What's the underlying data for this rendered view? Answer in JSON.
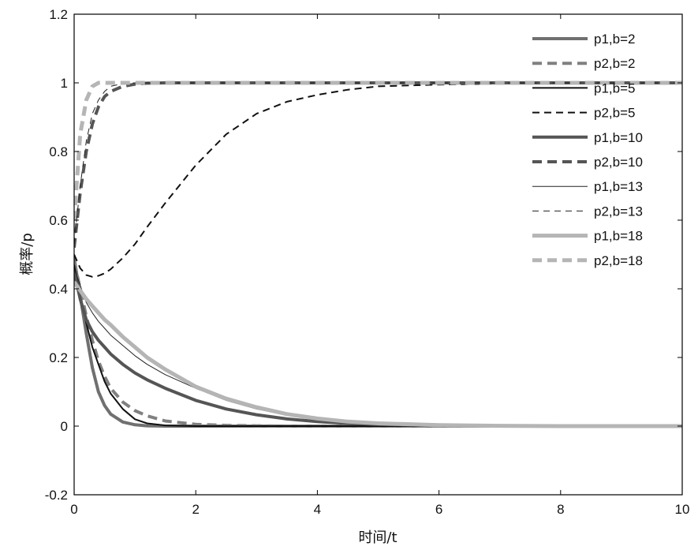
{
  "chart_data": {
    "type": "line",
    "title": "",
    "xlabel": "时间/t",
    "ylabel": "概率/p",
    "xlim": [
      0,
      10
    ],
    "ylim": [
      -0.2,
      1.2
    ],
    "xticks": [
      "0",
      "2",
      "4",
      "6",
      "8",
      "10"
    ],
    "yticks": [
      "-0.2",
      "0",
      "0.2",
      "0.4",
      "0.6",
      "0.8",
      "1",
      "1.2"
    ],
    "grid": false,
    "legend_position": "top-right",
    "x": [
      0,
      0.1,
      0.2,
      0.3,
      0.4,
      0.5,
      0.6,
      0.8,
      1.0,
      1.2,
      1.5,
      2.0,
      2.5,
      3.0,
      3.5,
      4.0,
      4.5,
      5.0,
      6.0,
      7.0,
      8.0,
      10.0
    ],
    "series": [
      {
        "name": "p1,b=2",
        "color": "#707070",
        "style": "solid",
        "width": 4,
        "values": [
          0.49,
          0.38,
          0.27,
          0.17,
          0.1,
          0.06,
          0.035,
          0.012,
          0.004,
          0.001,
          0,
          0,
          0,
          0,
          0,
          0,
          0,
          0,
          0,
          0,
          0,
          0
        ]
      },
      {
        "name": "p2,b=2",
        "color": "#808080",
        "style": "dashed",
        "width": 4,
        "values": [
          0.48,
          0.4,
          0.32,
          0.25,
          0.19,
          0.145,
          0.11,
          0.07,
          0.045,
          0.03,
          0.015,
          0.005,
          0.002,
          0.001,
          0,
          0,
          0,
          0,
          0,
          0,
          0,
          0
        ]
      },
      {
        "name": "p1,b=5",
        "color": "#111111",
        "style": "solid",
        "width": 2,
        "values": [
          0.47,
          0.38,
          0.3,
          0.23,
          0.18,
          0.13,
          0.095,
          0.05,
          0.02,
          0.008,
          0.002,
          0,
          0,
          0,
          0,
          0,
          0,
          0,
          0,
          0,
          0,
          0
        ]
      },
      {
        "name": "p2,b=5",
        "color": "#111111",
        "style": "dashed",
        "width": 2,
        "values": [
          0.5,
          0.46,
          0.44,
          0.435,
          0.438,
          0.445,
          0.457,
          0.49,
          0.53,
          0.58,
          0.65,
          0.76,
          0.85,
          0.91,
          0.945,
          0.965,
          0.98,
          0.99,
          0.995,
          0.998,
          1.0,
          1.0
        ]
      },
      {
        "name": "p1,b=10",
        "color": "#555555",
        "style": "solid",
        "width": 4,
        "values": [
          0.45,
          0.37,
          0.31,
          0.275,
          0.25,
          0.23,
          0.21,
          0.18,
          0.155,
          0.135,
          0.11,
          0.075,
          0.05,
          0.033,
          0.021,
          0.013,
          0.008,
          0.005,
          0.002,
          0.001,
          0,
          0
        ]
      },
      {
        "name": "p2,b=10",
        "color": "#555555",
        "style": "dashed",
        "width": 4,
        "values": [
          0.52,
          0.68,
          0.8,
          0.88,
          0.93,
          0.96,
          0.975,
          0.99,
          0.996,
          0.999,
          1.0,
          1.0,
          1.0,
          1.0,
          1.0,
          1.0,
          1.0,
          1.0,
          1.0,
          1.0,
          1.0,
          1.0
        ]
      },
      {
        "name": "p1,b=13",
        "color": "#222222",
        "style": "solid",
        "width": 1,
        "values": [
          0.46,
          0.41,
          0.36,
          0.33,
          0.305,
          0.285,
          0.265,
          0.235,
          0.205,
          0.18,
          0.15,
          0.11,
          0.075,
          0.05,
          0.032,
          0.02,
          0.012,
          0.007,
          0.003,
          0.001,
          0,
          0
        ]
      },
      {
        "name": "p2,b=13",
        "color": "#222222",
        "style": "dashed",
        "width": 1,
        "values": [
          0.53,
          0.7,
          0.83,
          0.91,
          0.95,
          0.975,
          0.99,
          0.998,
          1.0,
          1.0,
          1.0,
          1.0,
          1.0,
          1.0,
          1.0,
          1.0,
          1.0,
          1.0,
          1.0,
          1.0,
          1.0,
          1.0
        ]
      },
      {
        "name": "p1,b=18",
        "color": "#b5b5b5",
        "style": "solid",
        "width": 5,
        "values": [
          0.42,
          0.395,
          0.37,
          0.35,
          0.33,
          0.31,
          0.295,
          0.26,
          0.23,
          0.2,
          0.165,
          0.115,
          0.08,
          0.055,
          0.035,
          0.022,
          0.013,
          0.008,
          0.003,
          0.001,
          0,
          0
        ]
      },
      {
        "name": "p2,b=18",
        "color": "#b5b5b5",
        "style": "dashed",
        "width": 5,
        "values": [
          0.6,
          0.85,
          0.95,
          0.99,
          1.0,
          1.0,
          1.0,
          1.0,
          1.0,
          1.0,
          1.0,
          1.0,
          1.0,
          1.0,
          1.0,
          1.0,
          1.0,
          1.0,
          1.0,
          1.0,
          1.0,
          1.0
        ]
      }
    ]
  }
}
